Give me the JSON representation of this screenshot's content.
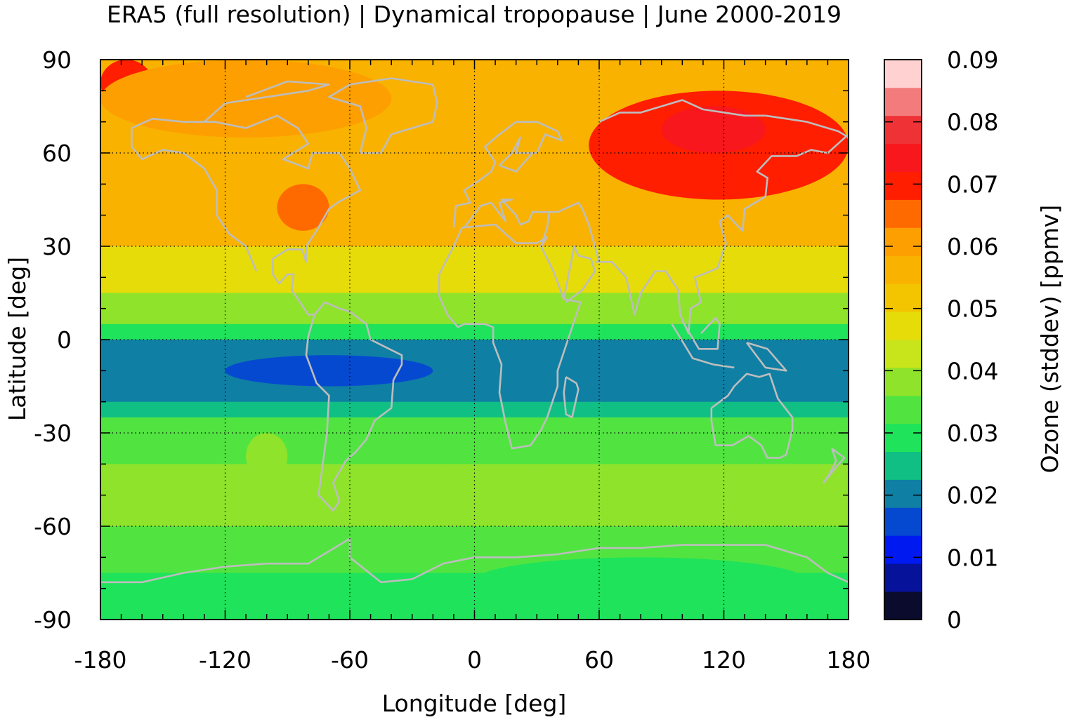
{
  "chart_data": {
    "type": "heatmap",
    "title": "ERA5 (full resolution) | Dynamical tropopause | June 2000-2019",
    "xlabel": "Longitude [deg]",
    "ylabel": "Latitude [deg]",
    "colorbar_label": "Ozone (stddev) [ppmv]",
    "xlim": [
      -180,
      180
    ],
    "ylim": [
      -90,
      90
    ],
    "x_ticks": [
      "-180",
      "-120",
      "-60",
      "0",
      "60",
      "120",
      "180"
    ],
    "y_ticks": [
      "90",
      "60",
      "30",
      "0",
      "-30",
      "-60",
      "-90"
    ],
    "x_tick_values": [
      -180,
      -120,
      -60,
      0,
      60,
      120,
      180
    ],
    "y_tick_values": [
      90,
      60,
      30,
      0,
      -30,
      -60,
      -90
    ],
    "colorbar_ticks": [
      "0.09",
      "0.08",
      "0.07",
      "0.06",
      "0.05",
      "0.04",
      "0.03",
      "0.02",
      "0.01",
      "0"
    ],
    "colorbar_tick_values": [
      0.09,
      0.08,
      0.07,
      0.06,
      0.05,
      0.04,
      0.03,
      0.02,
      0.01,
      0
    ],
    "colorbar_range": [
      0,
      0.09
    ],
    "grid": "dotted",
    "coastlines": true,
    "levels": [
      {
        "from": 0.0,
        "to": 0.0045,
        "color": "#0b0b2e"
      },
      {
        "from": 0.0045,
        "to": 0.009,
        "color": "#07129a"
      },
      {
        "from": 0.009,
        "to": 0.0135,
        "color": "#0019f0"
      },
      {
        "from": 0.0135,
        "to": 0.018,
        "color": "#0649d1"
      },
      {
        "from": 0.018,
        "to": 0.0225,
        "color": "#0f7fa4"
      },
      {
        "from": 0.0225,
        "to": 0.027,
        "color": "#10bf84"
      },
      {
        "from": 0.027,
        "to": 0.0315,
        "color": "#1fe35a"
      },
      {
        "from": 0.0315,
        "to": 0.036,
        "color": "#51e441"
      },
      {
        "from": 0.036,
        "to": 0.0405,
        "color": "#8fe32a"
      },
      {
        "from": 0.0405,
        "to": 0.045,
        "color": "#c8e41a"
      },
      {
        "from": 0.045,
        "to": 0.0495,
        "color": "#e6dc0a"
      },
      {
        "from": 0.0495,
        "to": 0.054,
        "color": "#f2c500"
      },
      {
        "from": 0.054,
        "to": 0.0585,
        "color": "#f9b200"
      },
      {
        "from": 0.0585,
        "to": 0.063,
        "color": "#fd9f00"
      },
      {
        "from": 0.063,
        "to": 0.0675,
        "color": "#ff6a00"
      },
      {
        "from": 0.0675,
        "to": 0.072,
        "color": "#ff1e00"
      },
      {
        "from": 0.072,
        "to": 0.0765,
        "color": "#f7171d"
      },
      {
        "from": 0.0765,
        "to": 0.081,
        "color": "#ee3236"
      },
      {
        "from": 0.081,
        "to": 0.0855,
        "color": "#f37b7b"
      },
      {
        "from": 0.0855,
        "to": 0.09,
        "color": "#ffd1d1"
      }
    ],
    "zonal_bands": [
      {
        "lat_from": 90,
        "lat_to": 60,
        "value": 0.058
      },
      {
        "lat_from": 60,
        "lat_to": 30,
        "value": 0.055
      },
      {
        "lat_from": 30,
        "lat_to": 15,
        "value": 0.046
      },
      {
        "lat_from": 15,
        "lat_to": 5,
        "value": 0.04
      },
      {
        "lat_from": 5,
        "lat_to": 0,
        "value": 0.03
      },
      {
        "lat_from": 0,
        "lat_to": -20,
        "value": 0.02
      },
      {
        "lat_from": -20,
        "lat_to": -25,
        "value": 0.025
      },
      {
        "lat_from": -25,
        "lat_to": -40,
        "value": 0.033
      },
      {
        "lat_from": -40,
        "lat_to": -60,
        "value": 0.036
      },
      {
        "lat_from": -60,
        "lat_to": -75,
        "value": 0.033
      },
      {
        "lat_from": -75,
        "lat_to": -90,
        "value": 0.031
      }
    ],
    "features": [
      {
        "name": "Siberia maximum",
        "lon": [
          55,
          180
        ],
        "lat": [
          45,
          80
        ],
        "value": 0.07
      },
      {
        "name": "Siberia core",
        "lon": [
          90,
          140
        ],
        "lat": [
          60,
          75
        ],
        "value": 0.074
      },
      {
        "name": "Arctic Pacific maximum",
        "lon": [
          -180,
          -155
        ],
        "lat": [
          75,
          90
        ],
        "value": 0.07
      },
      {
        "name": "Arctic high",
        "lon": [
          -180,
          -40
        ],
        "lat": [
          65,
          90
        ],
        "value": 0.062
      },
      {
        "name": "North America Great Lakes",
        "lon": [
          -95,
          -70
        ],
        "lat": [
          35,
          50
        ],
        "value": 0.064
      },
      {
        "name": "Tropical Pacific-Atlantic minimum",
        "lon": [
          -120,
          -20
        ],
        "lat": [
          -15,
          -5
        ],
        "value": 0.016
      },
      {
        "name": "Southern subtropics Pacific",
        "lon": [
          -110,
          -90
        ],
        "lat": [
          -45,
          -30
        ],
        "value": 0.038
      },
      {
        "name": "Southern ocean Indian",
        "lon": [
          -30,
          90
        ],
        "lat": [
          -55,
          -40
        ],
        "value": 0.038
      },
      {
        "name": "Antarctic margin",
        "lon": [
          0,
          160
        ],
        "lat": [
          -85,
          -70
        ],
        "value": 0.029
      }
    ]
  }
}
